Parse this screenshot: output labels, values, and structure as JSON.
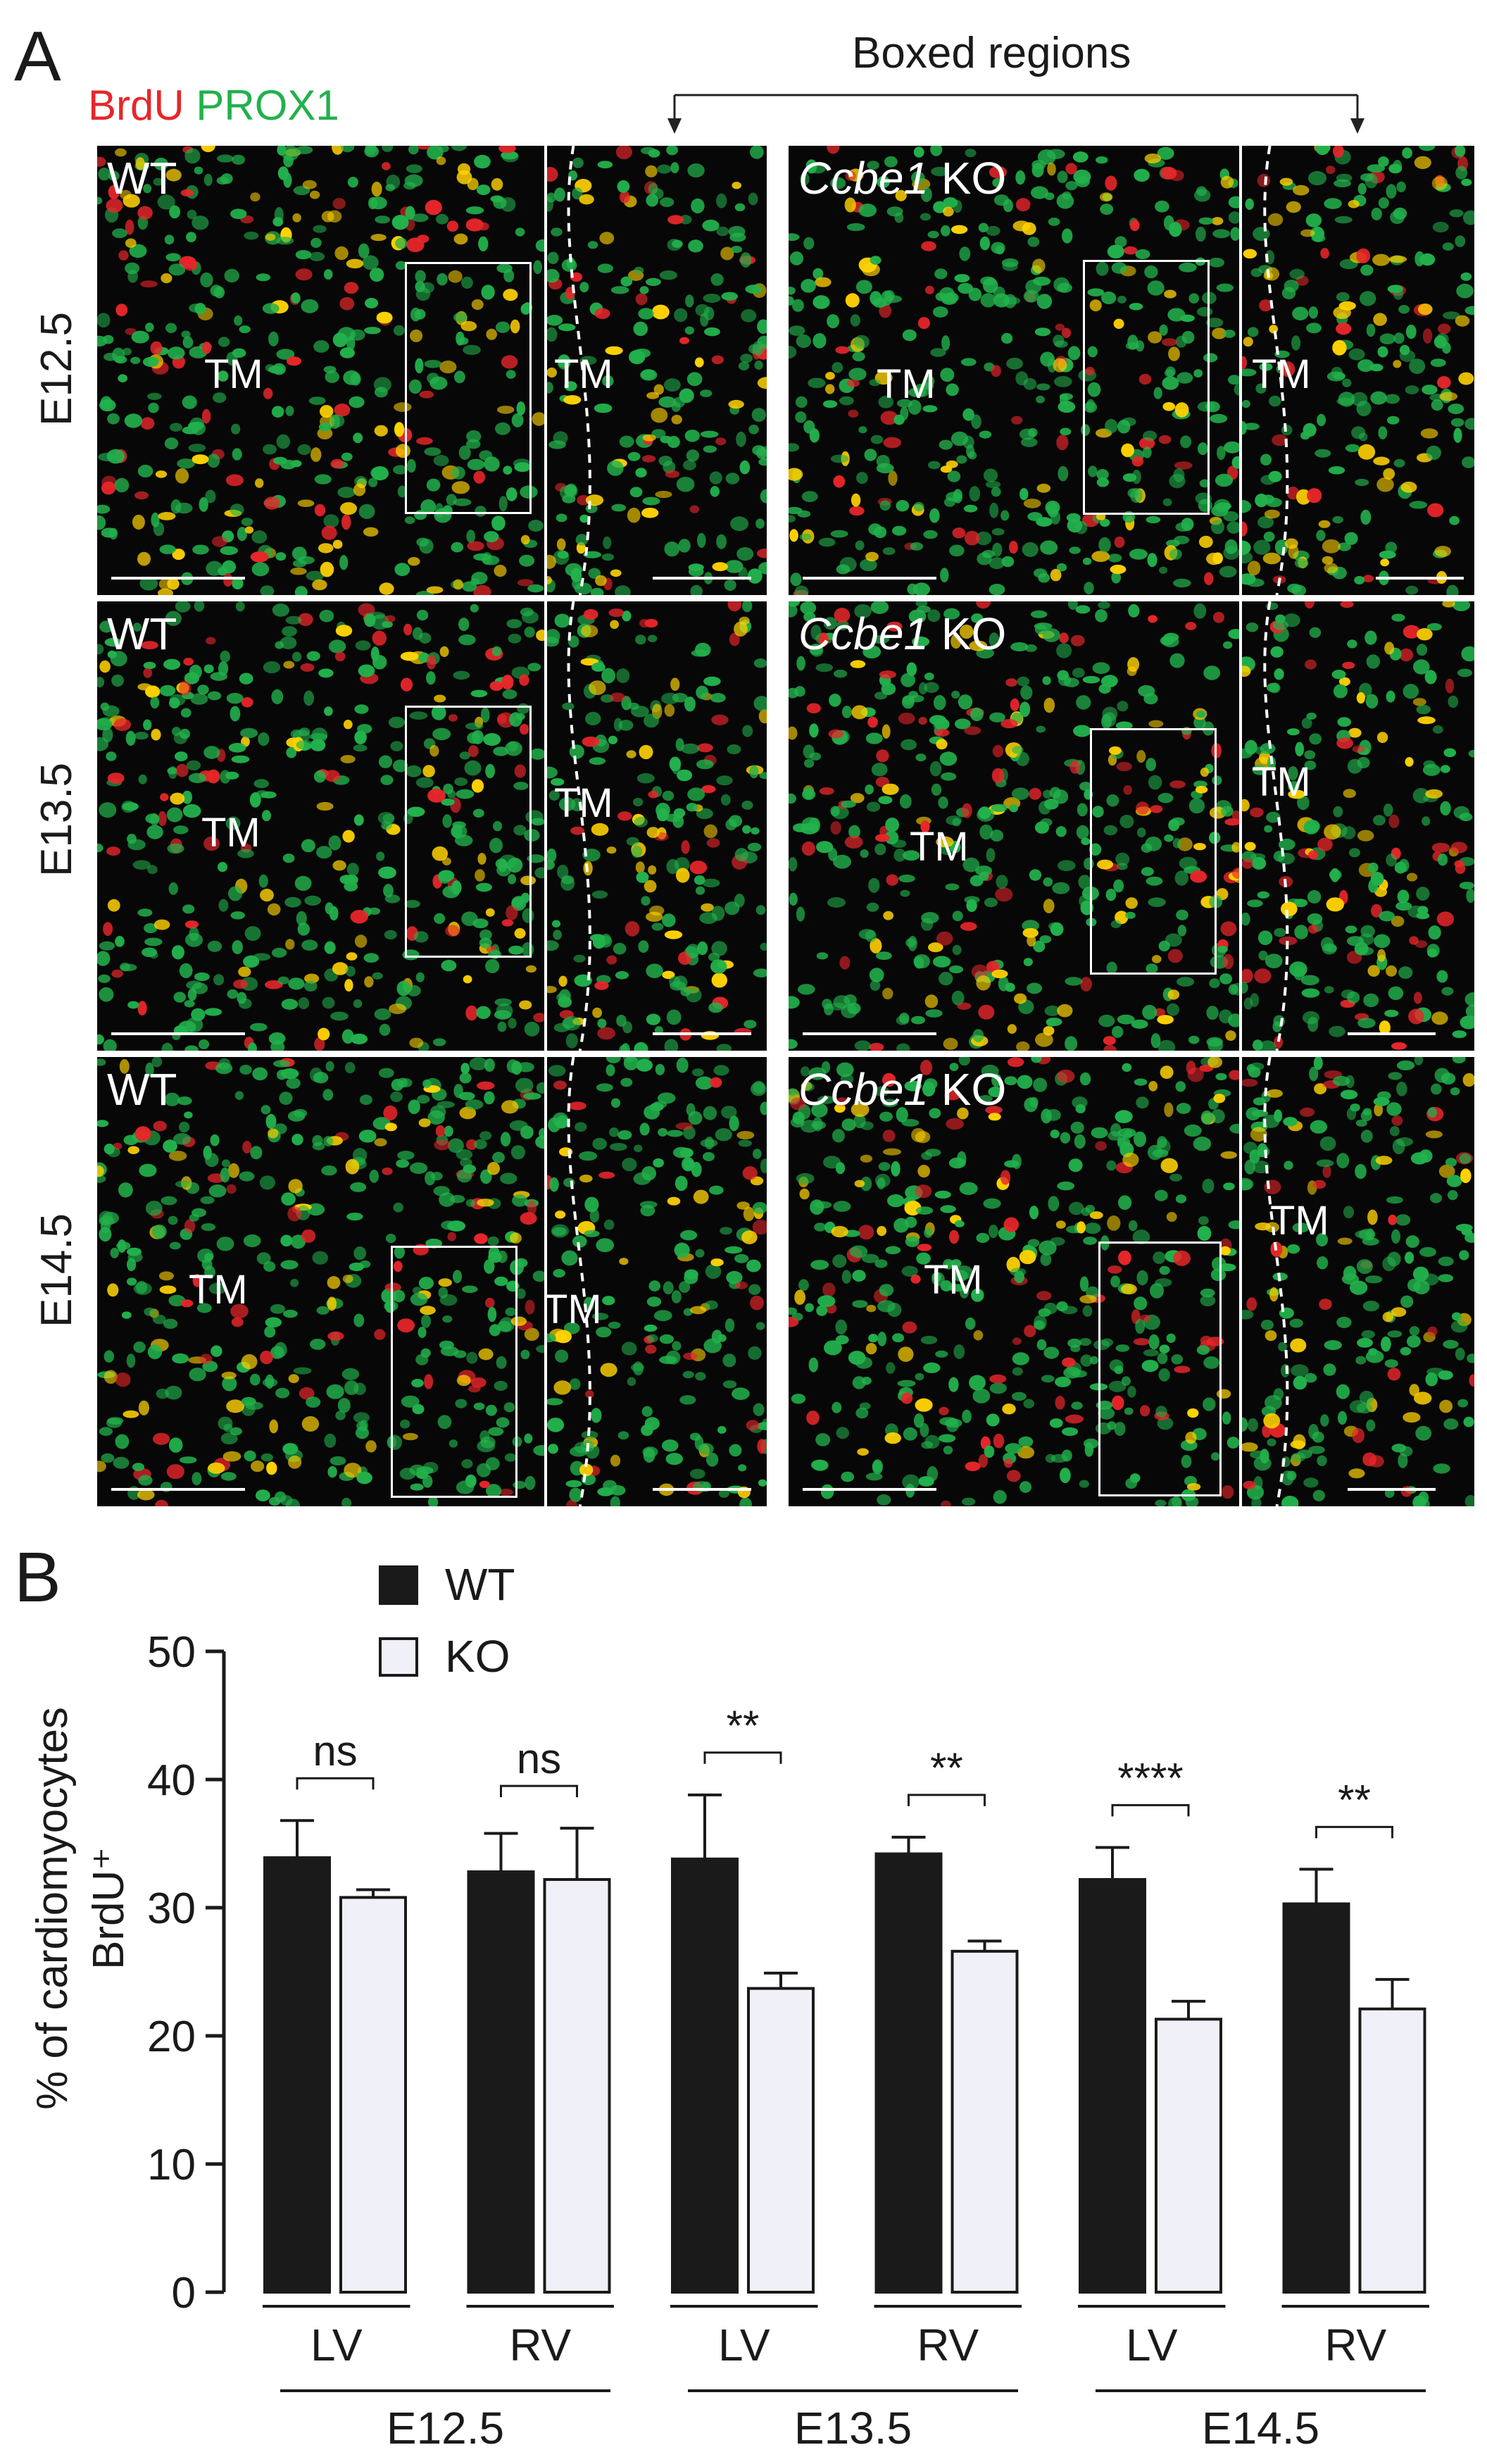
{
  "panel_a": {
    "letter": "A",
    "stain_brdu": "BrdU",
    "stain_prox1": "PROX1",
    "boxed_regions": "Boxed regions",
    "rows": [
      "E12.5",
      "E13.5",
      "E14.5"
    ],
    "wt_label": "WT",
    "ko_gene": "Ccbe1",
    "ko_suffix": "KO",
    "tm_label": "TM",
    "colors": {
      "brdu": "#e8262a",
      "prox1": "#22b14c",
      "merge": "#ffd200",
      "background": "#070707"
    }
  },
  "chart_data": {
    "panel_letter": "B",
    "type": "bar",
    "ylabel_line1": "% of cardiomyocytes",
    "ylabel_line2": "BrdU⁺",
    "ylim": [
      0,
      50
    ],
    "yticks": [
      0,
      10,
      20,
      30,
      40,
      50
    ],
    "categories": [
      "LV",
      "RV",
      "LV",
      "RV",
      "LV",
      "RV"
    ],
    "groups": [
      "E12.5",
      "E13.5",
      "E14.5"
    ],
    "series": [
      {
        "name": "WT",
        "color": "#1a1a1a",
        "values": [
          33.9,
          32.8,
          33.8,
          34.2,
          32.2,
          30.3
        ],
        "errors": [
          2.9,
          3.0,
          5.0,
          1.3,
          2.5,
          2.7
        ]
      },
      {
        "name": "KO",
        "color": "#f0f0f8",
        "values": [
          30.8,
          32.2,
          23.7,
          26.6,
          21.3,
          22.1
        ],
        "errors": [
          0.6,
          4.0,
          1.2,
          0.8,
          1.4,
          2.3
        ]
      }
    ],
    "significance": [
      "ns",
      "ns",
      "**",
      "**",
      "****",
      "**"
    ],
    "legend_position": "top-left"
  }
}
